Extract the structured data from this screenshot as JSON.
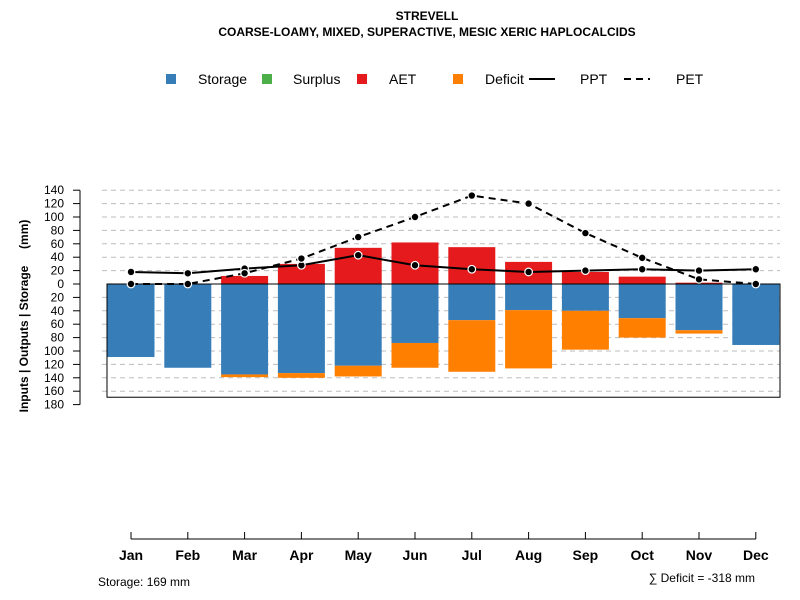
{
  "chart_data": {
    "type": "bar",
    "title": "STREVELL",
    "subtitle": "COARSE-LOAMY, MIXED, SUPERACTIVE, MESIC XERIC HAPLOCALCIDS",
    "ylabel": "Inputs | Outputs | Storage     (mm)",
    "categories": [
      "Jan",
      "Feb",
      "Mar",
      "Apr",
      "May",
      "Jun",
      "Jul",
      "Aug",
      "Sep",
      "Oct",
      "Nov",
      "Dec"
    ],
    "ylim": [
      -180,
      140
    ],
    "yticks": [
      {
        "value": 140,
        "label": "140"
      },
      {
        "value": 120,
        "label": "120"
      },
      {
        "value": 100,
        "label": "100"
      },
      {
        "value": 80,
        "label": "80"
      },
      {
        "value": 60,
        "label": "60"
      },
      {
        "value": 40,
        "label": "40"
      },
      {
        "value": 20,
        "label": "20"
      },
      {
        "value": 0,
        "label": "0"
      },
      {
        "value": -20,
        "label": "20"
      },
      {
        "value": -40,
        "label": "40"
      },
      {
        "value": -60,
        "label": "60"
      },
      {
        "value": -80,
        "label": "80"
      },
      {
        "value": -100,
        "label": "100"
      },
      {
        "value": -120,
        "label": "120"
      },
      {
        "value": -140,
        "label": "140"
      },
      {
        "value": -160,
        "label": "160"
      },
      {
        "value": -180,
        "label": "180"
      }
    ],
    "grid": true,
    "legend_position": "top",
    "legend": [
      {
        "name": "Storage",
        "kind": "square",
        "color": "#377eb8"
      },
      {
        "name": "Surplus",
        "kind": "square",
        "color": "#4daf4a"
      },
      {
        "name": "AET",
        "kind": "square",
        "color": "#e41a1c"
      },
      {
        "name": "Deficit",
        "kind": "square",
        "color": "#ff7f00"
      },
      {
        "name": "PPT",
        "kind": "solid-line",
        "color": "#000000"
      },
      {
        "name": "PET",
        "kind": "dashed-line",
        "color": "#000000"
      }
    ],
    "series": [
      {
        "name": "Storage",
        "color": "#377eb8",
        "values": [
          109,
          125,
          135,
          133,
          122,
          88,
          54,
          39,
          40,
          51,
          69,
          91
        ]
      },
      {
        "name": "Surplus",
        "color": "#4daf4a",
        "values": [
          0,
          0,
          0,
          0,
          0,
          0,
          0,
          0,
          0,
          0,
          0,
          0
        ]
      },
      {
        "name": "AET",
        "color": "#e41a1c",
        "values": [
          0,
          0,
          12,
          30,
          54,
          62,
          55,
          33,
          18,
          11,
          2,
          0
        ]
      },
      {
        "name": "Deficit",
        "color": "#ff7f00",
        "values": [
          0,
          0,
          4,
          7,
          16,
          37,
          77,
          87,
          58,
          29,
          5,
          0
        ]
      },
      {
        "name": "PPT",
        "color": "#000000",
        "values": [
          18,
          16,
          23,
          28,
          43,
          28,
          22,
          18,
          20,
          22,
          20,
          22
        ]
      },
      {
        "name": "PET",
        "color": "#000000",
        "values": [
          0,
          0,
          16,
          38,
          70,
          100,
          132,
          120,
          76,
          39,
          7,
          0
        ]
      }
    ],
    "storage_capacity": 169,
    "footer_left": "Storage: 169 mm",
    "footer_right": "∑ Deficit = -318 mm"
  }
}
